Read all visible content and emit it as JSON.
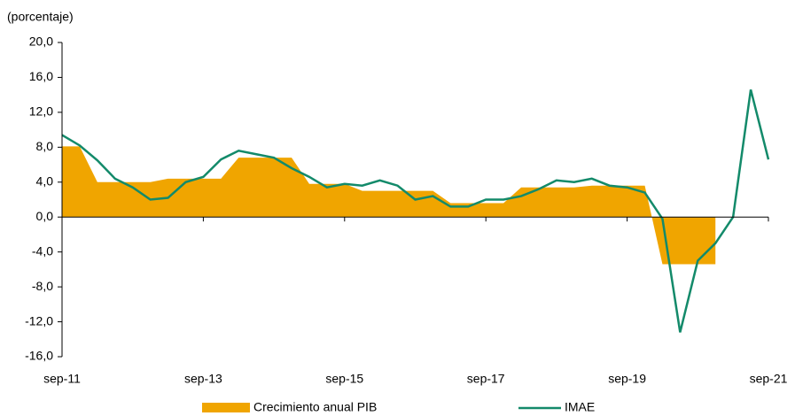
{
  "chart_data": {
    "type": "line",
    "y_label": "(porcentaje)",
    "categories": [
      "sep-11",
      null,
      null,
      null,
      null,
      null,
      null,
      null,
      "sep-13",
      null,
      null,
      null,
      null,
      null,
      null,
      null,
      "sep-15",
      null,
      null,
      null,
      null,
      null,
      null,
      null,
      "sep-17",
      null,
      null,
      null,
      null,
      null,
      null,
      null,
      "sep-19",
      null,
      null,
      null,
      null,
      null,
      null,
      null,
      "sep-21"
    ],
    "series": [
      {
        "name": "Crecimiento anual PIB",
        "kind": "area",
        "color": "#f0a500",
        "values": [
          8.1,
          8.1,
          4.0,
          4.0,
          4.0,
          4.0,
          4.4,
          4.4,
          4.4,
          4.4,
          6.8,
          6.8,
          6.8,
          6.8,
          3.8,
          3.8,
          3.8,
          3.0,
          3.0,
          3.0,
          3.0,
          3.0,
          1.6,
          1.6,
          1.6,
          1.6,
          3.4,
          3.4,
          3.4,
          3.4,
          3.6,
          3.6,
          3.6,
          3.6,
          -5.4,
          -5.4,
          -5.4,
          -5.4,
          null,
          null,
          null
        ]
      },
      {
        "name": "IMAE",
        "kind": "line",
        "color": "#138a6a",
        "values": [
          9.4,
          8.2,
          6.5,
          4.4,
          3.4,
          2.0,
          2.2,
          4.0,
          4.6,
          6.6,
          7.6,
          7.2,
          6.8,
          5.6,
          4.6,
          3.4,
          3.8,
          3.6,
          4.2,
          3.6,
          2.0,
          2.4,
          1.2,
          1.2,
          2.0,
          2.0,
          2.4,
          3.2,
          4.2,
          4.0,
          4.4,
          3.6,
          3.4,
          2.8,
          -0.2,
          -13.2,
          -5.0,
          -3.0,
          0.0,
          14.6,
          6.6
        ]
      }
    ],
    "ylim": [
      -16,
      20
    ],
    "yticks": [
      {
        "value": -16,
        "label": "-16,0"
      },
      {
        "value": -12,
        "label": "-12,0"
      },
      {
        "value": -8,
        "label": "-8,0"
      },
      {
        "value": -4,
        "label": "-4,0"
      },
      {
        "value": 0,
        "label": "0,0"
      },
      {
        "value": 4,
        "label": "4,0"
      },
      {
        "value": 8,
        "label": "8,0"
      },
      {
        "value": 12,
        "label": "12,0"
      },
      {
        "value": 16,
        "label": "16,0"
      },
      {
        "value": 20,
        "label": "20,0"
      }
    ],
    "grid": false
  }
}
